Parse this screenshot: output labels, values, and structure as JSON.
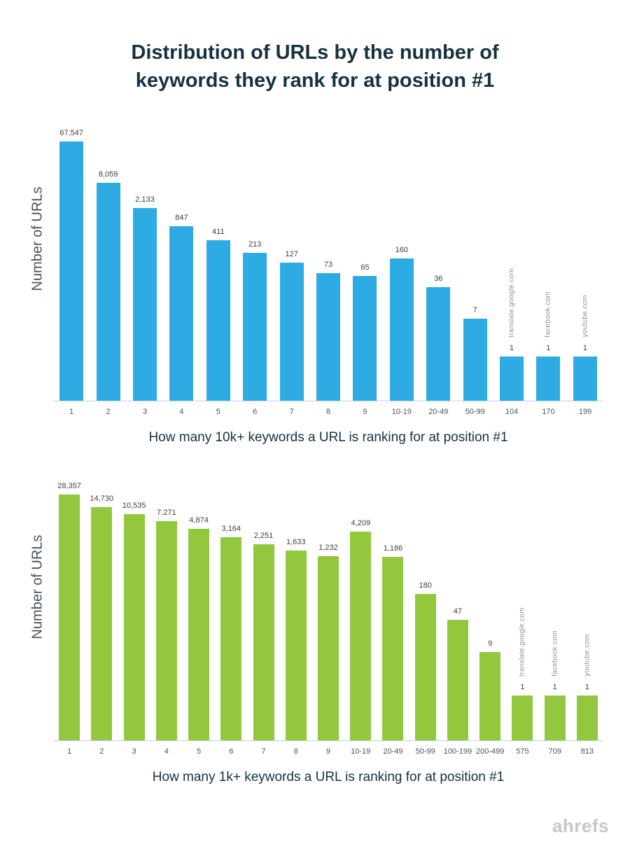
{
  "title": {
    "line1": "Distribution of URLs by the number of",
    "line2": "keywords they rank for at position #1"
  },
  "footer": {
    "brand": "ahrefs"
  },
  "chart_data": [
    {
      "type": "bar",
      "title": "",
      "xlabel": "How many 10k+ keywords a URL is ranking for at position #1",
      "ylabel": "Number of URLs",
      "scale": "log",
      "grid": false,
      "legend": "none",
      "bar_color": "#2fabe3",
      "categories": [
        "1",
        "2",
        "3",
        "4",
        "5",
        "6",
        "7",
        "8",
        "9",
        "10-19",
        "20-49",
        "50-99",
        "104",
        "170",
        "199"
      ],
      "values": [
        67547,
        8059,
        2133,
        847,
        411,
        213,
        127,
        73,
        65,
        160,
        36,
        7,
        1,
        1,
        1
      ],
      "value_labels": [
        "67,547",
        "8,059",
        "2,133",
        "847",
        "411",
        "213",
        "127",
        "73",
        "65",
        "160",
        "36",
        "7",
        "1",
        "1",
        "1"
      ],
      "annotations": [
        {
          "index": 12,
          "text": "translate.google.com"
        },
        {
          "index": 13,
          "text": "facebook.com"
        },
        {
          "index": 14,
          "text": "youtube.com"
        }
      ]
    },
    {
      "type": "bar",
      "title": "",
      "xlabel": "How many 1k+ keywords a URL is ranking for at position #1",
      "ylabel": "Number of URLs",
      "scale": "log",
      "grid": false,
      "legend": "none",
      "bar_color": "#93c83e",
      "categories": [
        "1",
        "2",
        "3",
        "4",
        "5",
        "6",
        "7",
        "8",
        "9",
        "10-19",
        "20-49",
        "50-99",
        "100-199",
        "200-499",
        "575",
        "709",
        "813"
      ],
      "values": [
        28357,
        14730,
        10535,
        7271,
        4874,
        3164,
        2251,
        1633,
        1232,
        4209,
        1186,
        180,
        47,
        9,
        1,
        1,
        1
      ],
      "value_labels": [
        "28,357",
        "14,730",
        "10,535",
        "7,271",
        "4,874",
        "3,164",
        "2,251",
        "1,633",
        "1,232",
        "4,209",
        "1,186",
        "180",
        "47",
        "9",
        "1",
        "1",
        "1"
      ],
      "annotations": [
        {
          "index": 14,
          "text": "translate.google.com"
        },
        {
          "index": 15,
          "text": "facebook.com"
        },
        {
          "index": 16,
          "text": "youtube.com"
        }
      ]
    }
  ]
}
